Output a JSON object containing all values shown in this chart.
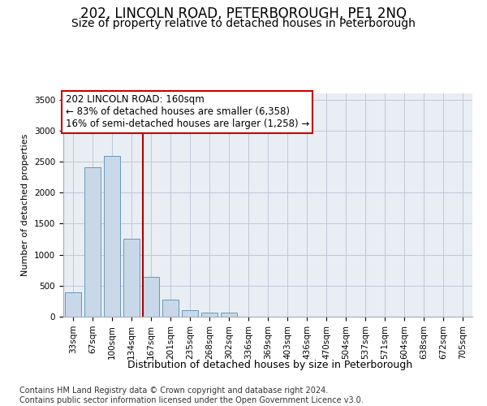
{
  "title": "202, LINCOLN ROAD, PETERBOROUGH, PE1 2NQ",
  "subtitle": "Size of property relative to detached houses in Peterborough",
  "xlabel": "Distribution of detached houses by size in Peterborough",
  "ylabel": "Number of detached properties",
  "categories": [
    "33sqm",
    "67sqm",
    "100sqm",
    "134sqm",
    "167sqm",
    "201sqm",
    "235sqm",
    "268sqm",
    "302sqm",
    "336sqm",
    "369sqm",
    "403sqm",
    "436sqm",
    "470sqm",
    "504sqm",
    "537sqm",
    "571sqm",
    "604sqm",
    "638sqm",
    "672sqm",
    "705sqm"
  ],
  "values": [
    390,
    2410,
    2590,
    1260,
    640,
    270,
    110,
    70,
    60,
    0,
    0,
    0,
    0,
    0,
    0,
    0,
    0,
    0,
    0,
    0,
    0
  ],
  "bar_color": "#c8d8e8",
  "bar_edge_color": "#6699bb",
  "vline_color": "#aa0000",
  "annotation_text": "202 LINCOLN ROAD: 160sqm\n← 83% of detached houses are smaller (6,358)\n16% of semi-detached houses are larger (1,258) →",
  "annotation_box_color": "white",
  "annotation_box_edge_color": "#cc0000",
  "ylim": [
    0,
    3600
  ],
  "yticks": [
    0,
    500,
    1000,
    1500,
    2000,
    2500,
    3000,
    3500
  ],
  "grid_color": "#c0c8d8",
  "background_color": "#e8eef4",
  "footnote": "Contains HM Land Registry data © Crown copyright and database right 2024.\nContains public sector information licensed under the Open Government Licence v3.0.",
  "title_fontsize": 12,
  "subtitle_fontsize": 10,
  "xlabel_fontsize": 9,
  "ylabel_fontsize": 8,
  "tick_fontsize": 7.5,
  "annotation_fontsize": 8.5,
  "footnote_fontsize": 7
}
